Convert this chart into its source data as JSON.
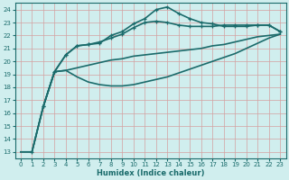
{
  "xlabel": "Humidex (Indice chaleur)",
  "ylabel": "",
  "xlim": [
    -0.5,
    23.5
  ],
  "ylim": [
    12.5,
    24.5
  ],
  "xticks": [
    0,
    1,
    2,
    3,
    4,
    5,
    6,
    7,
    8,
    9,
    10,
    11,
    12,
    13,
    14,
    15,
    16,
    17,
    18,
    19,
    20,
    21,
    22,
    23
  ],
  "yticks": [
    13,
    14,
    15,
    16,
    17,
    18,
    19,
    20,
    21,
    22,
    23,
    24
  ],
  "background_color": "#d0eeee",
  "grid_color": "#d4a0a0",
  "line_color": "#1a6b6b",
  "series": [
    {
      "x": [
        0,
        1,
        2,
        3,
        4,
        5,
        6,
        7,
        8,
        9,
        10,
        11,
        12,
        13,
        14,
        15,
        16,
        17,
        18,
        19,
        20,
        21,
        22,
        23
      ],
      "y": [
        13,
        13,
        16.5,
        19.2,
        19.3,
        19.5,
        19.7,
        19.9,
        20.1,
        20.2,
        20.4,
        20.5,
        20.6,
        20.7,
        20.8,
        20.9,
        21.0,
        21.2,
        21.3,
        21.5,
        21.7,
        21.9,
        22.0,
        22.1
      ],
      "marker": false,
      "linewidth": 1.2
    },
    {
      "x": [
        0,
        1,
        2,
        3,
        4,
        5,
        6,
        7,
        8,
        9,
        10,
        11,
        12,
        13,
        14,
        15,
        16,
        17,
        18,
        19,
        20,
        21,
        22,
        23
      ],
      "y": [
        13,
        13,
        16.5,
        19.2,
        19.3,
        18.8,
        18.4,
        18.2,
        18.1,
        18.1,
        18.2,
        18.4,
        18.6,
        18.8,
        19.1,
        19.4,
        19.7,
        20.0,
        20.3,
        20.6,
        21.0,
        21.4,
        21.8,
        22.1
      ],
      "marker": false,
      "linewidth": 1.2
    },
    {
      "x": [
        1,
        2,
        3,
        4,
        5,
        6,
        7,
        8,
        9,
        10,
        11,
        12,
        13,
        14,
        15,
        16,
        17,
        18,
        19,
        20,
        21,
        22,
        23
      ],
      "y": [
        13,
        16.5,
        19.2,
        20.5,
        21.2,
        21.3,
        21.5,
        21.8,
        22.1,
        22.6,
        23.0,
        23.1,
        23.0,
        22.8,
        22.7,
        22.7,
        22.7,
        22.8,
        22.8,
        22.8,
        22.8,
        22.8,
        22.3
      ],
      "marker": true,
      "linewidth": 1.2
    },
    {
      "x": [
        2,
        3,
        4,
        5,
        6,
        7,
        8,
        9,
        10,
        11,
        12,
        13,
        14,
        15,
        16,
        17,
        18,
        19,
        20,
        21,
        22,
        23
      ],
      "y": [
        16.5,
        19.2,
        20.5,
        21.2,
        21.3,
        21.4,
        22.0,
        22.3,
        22.9,
        23.3,
        24.0,
        24.2,
        23.7,
        23.3,
        23.0,
        22.9,
        22.7,
        22.7,
        22.7,
        22.8,
        22.8,
        22.3
      ],
      "marker": true,
      "linewidth": 1.2
    }
  ]
}
